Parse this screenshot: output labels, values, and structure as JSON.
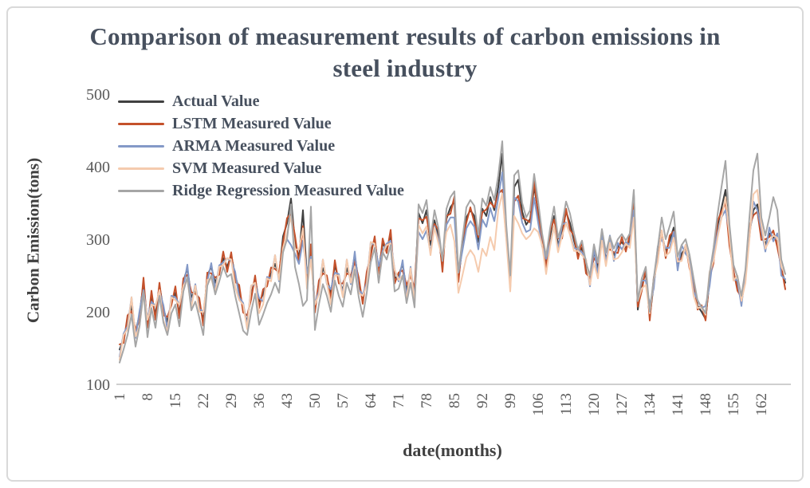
{
  "chart_data": {
    "type": "line",
    "title": "Comparison of measurement results of carbon emissions in steel industry",
    "xlabel": "date(months)",
    "ylabel": "Carbon Emission(tons)",
    "ylim": [
      100,
      500
    ],
    "yticks": [
      100,
      200,
      300,
      400,
      500
    ],
    "xticks": [
      1,
      8,
      15,
      22,
      29,
      36,
      43,
      50,
      57,
      64,
      71,
      78,
      85,
      92,
      99,
      106,
      113,
      120,
      127,
      134,
      141,
      148,
      155,
      162
    ],
    "x_range": [
      1,
      168
    ],
    "grid": false,
    "legend_position": "top-left-inside",
    "axis_line_color": "#bfbfbf",
    "tick_color": "#595959",
    "series": [
      {
        "name": "Actual Value",
        "color": "#404040",
        "values": [
          148,
          162,
          186,
          208,
          172,
          196,
          240,
          183,
          220,
          196,
          236,
          204,
          186,
          214,
          226,
          198,
          242,
          260,
          220,
          230,
          210,
          188,
          250,
          262,
          240,
          256,
          274,
          262,
          278,
          250,
          230,
          204,
          186,
          224,
          246,
          214,
          224,
          240,
          252,
          266,
          250,
          304,
          322,
          356,
          296,
          274,
          340,
          248,
          286,
          204,
          234,
          260,
          246,
          226,
          264,
          244,
          230,
          260,
          246,
          278,
          240,
          216,
          246,
          284,
          300,
          258,
          294,
          286,
          304,
          246,
          250,
          266,
          230,
          254,
          224,
          336,
          322,
          340,
          292,
          326,
          304,
          262,
          328,
          344,
          352,
          246,
          290,
          330,
          340,
          332,
          296,
          342,
          332,
          358,
          340,
          372,
          418,
          308,
          238,
          372,
          382,
          338,
          320,
          328,
          372,
          338,
          298,
          268,
          304,
          332,
          292,
          308,
          338,
          322,
          298,
          278,
          288,
          260,
          243,
          283,
          260,
          302,
          273,
          293,
          278,
          290,
          296,
          288,
          298,
          362,
          203,
          238,
          253,
          193,
          238,
          278,
          308,
          283,
          298,
          316,
          263,
          280,
          288,
          268,
          238,
          208,
          200,
          190,
          243,
          276,
          318,
          343,
          368,
          298,
          253,
          238,
          213,
          248,
          308,
          340,
          348,
          308,
          293,
          308,
          303,
          296,
          258,
          240
        ]
      },
      {
        "name": "LSTM Measured Value",
        "color": "#c4512b",
        "values": [
          155,
          157,
          195,
          201,
          176,
          187,
          247,
          178,
          229,
          189,
          240,
          195,
          193,
          209,
          235,
          191,
          246,
          251,
          227,
          225,
          219,
          181,
          254,
          253,
          247,
          251,
          283,
          255,
          282,
          241,
          237,
          199,
          195,
          217,
          250,
          205,
          231,
          235,
          261,
          259,
          254,
          295,
          329,
          336,
          305,
          267,
          318,
          239,
          293,
          199,
          243,
          253,
          250,
          217,
          271,
          239,
          239,
          253,
          250,
          269,
          247,
          211,
          255,
          277,
          304,
          249,
          301,
          281,
          313,
          239,
          254,
          257,
          237,
          249,
          233,
          329,
          326,
          331,
          299,
          321,
          313,
          255,
          332,
          335,
          359,
          241,
          299,
          323,
          344,
          323,
          303,
          337,
          341,
          351,
          344,
          363,
          368,
          303,
          247,
          352,
          360,
          329,
          327,
          323,
          381,
          331,
          302,
          259,
          311,
          327,
          301,
          301,
          342,
          313,
          305,
          273,
          297,
          253,
          247,
          274,
          267,
          297,
          282,
          286,
          282,
          281,
          303,
          283,
          307,
          355,
          207,
          229,
          260,
          188,
          247,
          271,
          312,
          274,
          305,
          311,
          272,
          273,
          292,
          259,
          245,
          203,
          209,
          188,
          247,
          267,
          325,
          338,
          350,
          291,
          257,
          229,
          220,
          243,
          317,
          333,
          338,
          299,
          300,
          303,
          312,
          289,
          262,
          231
        ]
      },
      {
        "name": "ARMA Measured Value",
        "color": "#8499c7",
        "values": [
          138,
          170,
          180,
          220,
          164,
          201,
          230,
          191,
          214,
          208,
          228,
          209,
          176,
          222,
          220,
          210,
          234,
          265,
          210,
          238,
          204,
          200,
          242,
          267,
          230,
          264,
          268,
          274,
          270,
          255,
          220,
          212,
          180,
          236,
          238,
          219,
          214,
          248,
          246,
          278,
          242,
          285,
          300,
          292,
          280,
          266,
          298,
          253,
          276,
          212,
          228,
          272,
          238,
          231,
          254,
          252,
          224,
          272,
          238,
          283,
          230,
          224,
          240,
          296,
          292,
          263,
          284,
          294,
          298,
          258,
          242,
          271,
          220,
          262,
          218,
          310,
          300,
          312,
          282,
          318,
          298,
          274,
          320,
          330,
          330,
          254,
          284,
          315,
          325,
          317,
          286,
          327,
          317,
          343,
          325,
          357,
          392,
          316,
          232,
          358,
          352,
          323,
          310,
          313,
          357,
          323,
          290,
          273,
          294,
          317,
          286,
          320,
          323,
          307,
          288,
          286,
          282,
          272,
          235,
          288,
          250,
          310,
          267,
          305,
          270,
          295,
          286,
          296,
          292,
          340,
          215,
          243,
          243,
          210,
          232,
          290,
          300,
          288,
          288,
          310,
          257,
          292,
          280,
          273,
          228,
          216,
          205,
          208,
          235,
          281,
          308,
          330,
          340,
          310,
          245,
          243,
          208,
          256,
          302,
          352,
          340,
          313,
          283,
          316,
          297,
          308,
          250,
          245
        ]
      },
      {
        "name": "SVM Measured Value",
        "color": "#f5cbae",
        "values": [
          134,
          168,
          176,
          220,
          166,
          180,
          226,
          189,
          210,
          208,
          230,
          188,
          172,
          220,
          216,
          210,
          236,
          244,
          206,
          236,
          200,
          200,
          244,
          246,
          226,
          262,
          264,
          274,
          272,
          234,
          216,
          210,
          176,
          236,
          240,
          198,
          210,
          246,
          242,
          278,
          244,
          288,
          308,
          331,
          286,
          286,
          315,
          232,
          272,
          210,
          224,
          272,
          240,
          210,
          250,
          250,
          220,
          272,
          240,
          262,
          226,
          222,
          236,
          296,
          294,
          242,
          280,
          292,
          294,
          258,
          244,
          250,
          216,
          260,
          214,
          320,
          308,
          318,
          278,
          316,
          294,
          274,
          310,
          320,
          297,
          226,
          250,
          275,
          285,
          277,
          255,
          287,
          277,
          303,
          285,
          340,
          363,
          300,
          228,
          332,
          322,
          308,
          300,
          305,
          315,
          310,
          292,
          252,
          290,
          318,
          282,
          305,
          322,
          306,
          284,
          284,
          278,
          272,
          237,
          267,
          246,
          298,
          263,
          295,
          272,
          274,
          282,
          294,
          288,
          330,
          215,
          232,
          237,
          198,
          244,
          268,
          312,
          277,
          282,
          302,
          269,
          270,
          292,
          262,
          222,
          205,
          206,
          196,
          255,
          270,
          302,
          329,
          358,
          304,
          243,
          250,
          215,
          240,
          300,
          362,
          368,
          320,
          287,
          298,
          305,
          302,
          262,
          252
        ]
      },
      {
        "name": "Ridge Regression Measured Value",
        "color": "#a6a6a6",
        "values": [
          130,
          148,
          168,
          196,
          152,
          180,
          228,
          165,
          205,
          178,
          222,
          185,
          168,
          198,
          210,
          180,
          228,
          248,
          202,
          214,
          192,
          168,
          236,
          250,
          224,
          242,
          262,
          248,
          252,
          222,
          198,
          174,
          168,
          200,
          225,
          182,
          196,
          212,
          224,
          240,
          226,
          282,
          300,
          348,
          262,
          238,
          208,
          216,
          345,
          175,
          210,
          238,
          222,
          200,
          243,
          222,
          207,
          240,
          224,
          258,
          220,
          193,
          226,
          268,
          288,
          240,
          282,
          272,
          292,
          228,
          232,
          250,
          212,
          240,
          206,
          348,
          336,
          354,
          300,
          340,
          315,
          270,
          342,
          358,
          366,
          254,
          300,
          344,
          354,
          346,
          306,
          356,
          346,
          372,
          354,
          388,
          435,
          320,
          250,
          388,
          395,
          350,
          330,
          340,
          390,
          352,
          308,
          276,
          315,
          345,
          302,
          320,
          352,
          335,
          308,
          286,
          298,
          268,
          250,
          293,
          268,
          314,
          282,
          304,
          287,
          300,
          307,
          298,
          308,
          368,
          215,
          246,
          262,
          200,
          246,
          288,
          330,
          300,
          318,
          338,
          276,
          292,
          300,
          278,
          246,
          215,
          207,
          198,
          252,
          288,
          334,
          372,
          408,
          320,
          265,
          248,
          222,
          258,
          330,
          395,
          418,
          330,
          305,
          330,
          358,
          340,
          272,
          252
        ]
      }
    ]
  }
}
